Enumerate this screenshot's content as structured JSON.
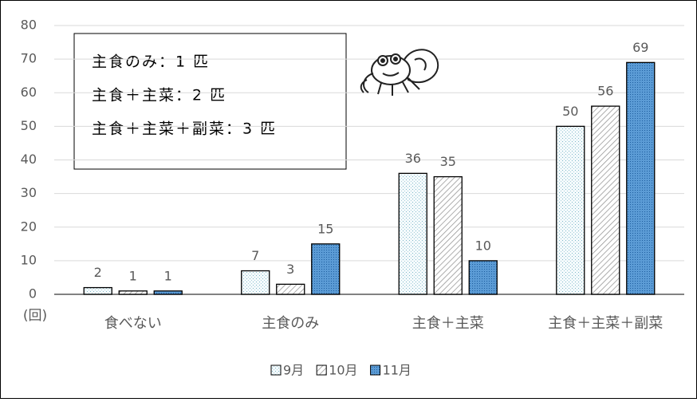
{
  "chart_data": {
    "type": "bar",
    "y_label": "(回)",
    "categories": [
      "食べない",
      "主食のみ",
      "主食＋主菜",
      "主食＋主菜＋副菜"
    ],
    "series": [
      {
        "name": "9月",
        "color": "#7fb8c9",
        "values": [
          2,
          7,
          36,
          50
        ]
      },
      {
        "name": "10月",
        "color": "#8a8a8a",
        "values": [
          1,
          3,
          35,
          56
        ]
      },
      {
        "name": "11月",
        "color": "#2e75b6",
        "values": [
          1,
          15,
          10,
          69
        ]
      }
    ],
    "ylim": [
      0,
      80
    ],
    "yticks": [
      0,
      10,
      20,
      30,
      40,
      50,
      60,
      70,
      80
    ],
    "grid": true,
    "legend": "bottom",
    "annotations": [
      "主食のみ：1 匹",
      "主食＋主菜：2 匹",
      "主食＋主菜＋副菜：3 匹"
    ]
  }
}
